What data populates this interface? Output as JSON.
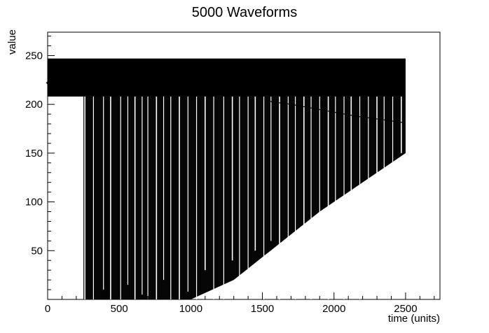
{
  "chart_data": {
    "type": "line",
    "title": "5000 Waveforms",
    "xlabel": "time (units)",
    "ylabel": "value",
    "xlim": [
      0,
      2740
    ],
    "ylim": [
      0,
      274
    ],
    "x_ticks": [
      0,
      500,
      1000,
      1500,
      2000,
      2500
    ],
    "y_ticks": [
      50,
      100,
      150,
      200,
      250
    ],
    "grid": false,
    "legend": "none",
    "series_count": 5000,
    "series": [
      {
        "role": "waveform-band",
        "x_range": [
          0,
          2500
        ],
        "y_max": 247,
        "y_min": 0
      },
      {
        "role": "early-baseline",
        "x": [
          0,
          20,
          40,
          60,
          80,
          100,
          120,
          140,
          160,
          180,
          200,
          220,
          240
        ],
        "y": [
          220,
          222,
          219,
          221,
          224,
          220,
          222,
          219,
          223,
          221,
          220,
          222,
          221
        ]
      },
      {
        "role": "trend-line",
        "x": [
          1550,
          1700,
          1850,
          2000,
          2150,
          2300,
          2450,
          2500
        ],
        "y": [
          203,
          200,
          196,
          192,
          188,
          185,
          182,
          181
        ]
      },
      {
        "role": "dips",
        "x": [
          260,
          320,
          390,
          440,
          510,
          560,
          610,
          660,
          700,
          760,
          810,
          860,
          920,
          980,
          1040,
          1100,
          1160,
          1230,
          1290,
          1340,
          1400,
          1450,
          1510,
          1560,
          1620,
          1680,
          1730,
          1790,
          1840,
          1900,
          1960,
          2010,
          2070,
          2120,
          2180,
          2240,
          2300,
          2350,
          2410,
          2470
        ],
        "y": [
          0,
          0,
          10,
          0,
          0,
          15,
          0,
          5,
          0,
          0,
          20,
          0,
          0,
          8,
          0,
          30,
          0,
          0,
          40,
          10,
          0,
          50,
          0,
          60,
          0,
          20,
          0,
          70,
          0,
          80,
          0,
          90,
          0,
          40,
          0,
          110,
          20,
          130,
          60,
          150
        ]
      }
    ],
    "colors": {
      "background": "#ffffff",
      "series": "#000000",
      "axes": "#000000"
    }
  }
}
